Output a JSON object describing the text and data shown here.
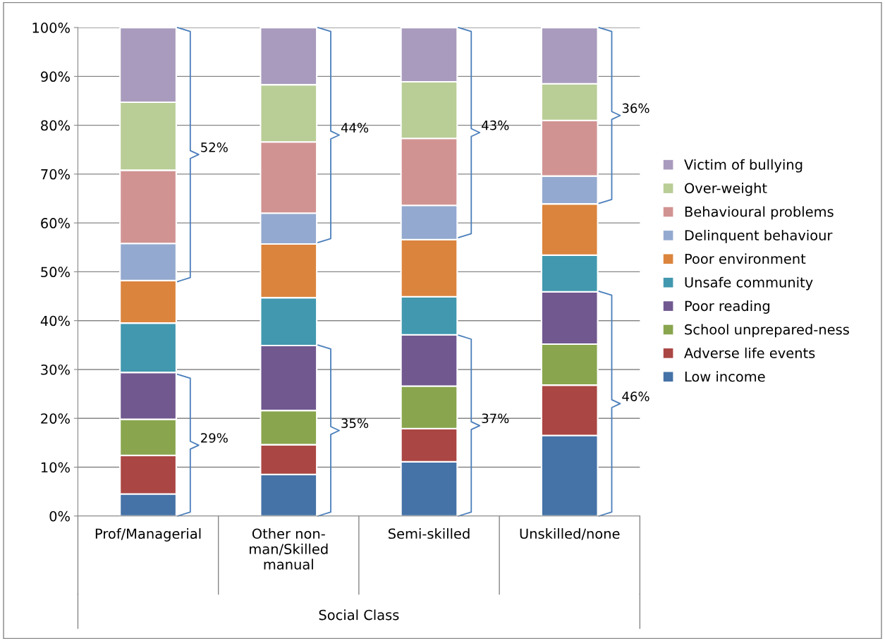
{
  "chart_data": {
    "type": "bar",
    "stacked": true,
    "xlabel": "Social Class",
    "categories": [
      "Prof/Managerial",
      "Other non-\nman/Skilled\nmanual",
      "Semi-skilled",
      "Unskilled/none"
    ],
    "series": [
      {
        "name": "Low income",
        "color": "#4572a7",
        "values": [
          4.5,
          8.5,
          11.1,
          16.5
        ]
      },
      {
        "name": "Adverse life events",
        "color": "#aa4643",
        "values": [
          7.9,
          6.1,
          6.8,
          10.3
        ]
      },
      {
        "name": "School unprepared-ness",
        "color": "#89a54e",
        "values": [
          7.4,
          7.0,
          8.7,
          8.4
        ]
      },
      {
        "name": "Poor reading",
        "color": "#71588f",
        "values": [
          9.6,
          13.3,
          10.5,
          10.7
        ]
      },
      {
        "name": "Unsafe community",
        "color": "#4198af",
        "values": [
          10.1,
          9.8,
          7.8,
          7.5
        ]
      },
      {
        "name": "Poor environment",
        "color": "#db843d",
        "values": [
          8.7,
          11.0,
          11.7,
          10.5
        ]
      },
      {
        "name": "Delinquent behaviour",
        "color": "#93a9cf",
        "values": [
          7.6,
          6.3,
          7.0,
          5.7
        ]
      },
      {
        "name": "Behavioural problems",
        "color": "#d19392",
        "values": [
          15.0,
          14.6,
          13.7,
          11.4
        ]
      },
      {
        "name": "Over-weight",
        "color": "#b9cd96",
        "values": [
          13.9,
          11.7,
          11.6,
          7.5
        ]
      },
      {
        "name": "Victim of bullying",
        "color": "#a99bbd",
        "values": [
          15.3,
          11.7,
          11.1,
          11.5
        ]
      }
    ],
    "ylim": [
      0,
      100
    ],
    "yticks": [
      {
        "value": 0,
        "label": "0%"
      },
      {
        "value": 10,
        "label": "10%"
      },
      {
        "value": 20,
        "label": "20%"
      },
      {
        "value": 30,
        "label": "30%"
      },
      {
        "value": 40,
        "label": "40%"
      },
      {
        "value": 50,
        "label": "50%"
      },
      {
        "value": 60,
        "label": "60%"
      },
      {
        "value": 70,
        "label": "70%"
      },
      {
        "value": 80,
        "label": "80%"
      },
      {
        "value": 90,
        "label": "90%"
      },
      {
        "value": 100,
        "label": "100%"
      }
    ],
    "grid": "y",
    "legend": "right",
    "annotations": [
      "29%",
      "52%",
      "35%",
      "44%",
      "37%",
      "43%",
      "46%",
      "36%"
    ]
  }
}
